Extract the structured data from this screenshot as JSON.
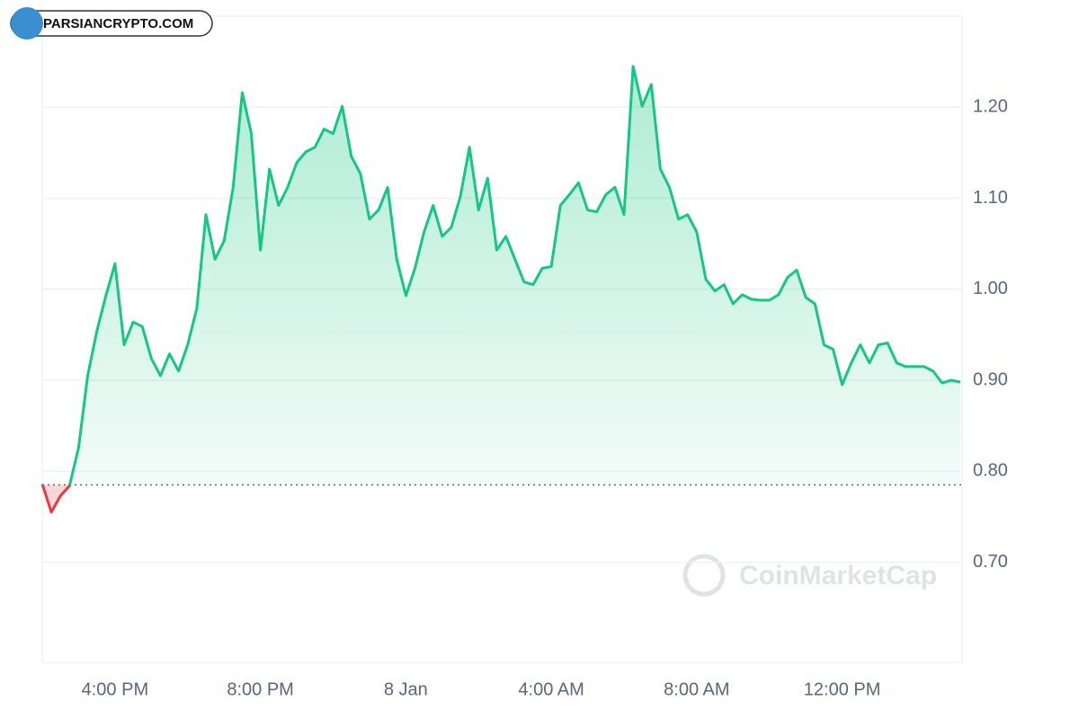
{
  "badge": "PARSIANCRYPTO.COM",
  "watermark": "CoinMarketCap",
  "chart_data": {
    "type": "line",
    "categories": [
      null,
      null,
      null,
      null,
      null,
      null,
      null,
      null,
      "4:00 PM",
      null,
      null,
      null,
      null,
      null,
      null,
      null,
      null,
      null,
      null,
      null,
      null,
      null,
      null,
      null,
      "8:00 PM",
      null,
      null,
      null,
      null,
      null,
      null,
      null,
      null,
      null,
      null,
      null,
      null,
      null,
      null,
      null,
      "8 Jan",
      null,
      null,
      null,
      null,
      null,
      null,
      null,
      null,
      null,
      null,
      null,
      null,
      null,
      null,
      null,
      "4:00 AM",
      null,
      null,
      null,
      null,
      null,
      null,
      null,
      null,
      null,
      null,
      null,
      null,
      null,
      null,
      null,
      "8:00 AM",
      null,
      null,
      null,
      null,
      null,
      null,
      null,
      null,
      null,
      null,
      null,
      null,
      null,
      null,
      null,
      "12:00 PM",
      null,
      null,
      null,
      null,
      null,
      null,
      null,
      null,
      null,
      null,
      null,
      null,
      null
    ],
    "series": [
      {
        "color": "#16c784",
        "below_color": "#ea3943",
        "values": [
          0.786,
          0.755,
          0.773,
          0.784,
          0.826,
          0.905,
          0.954,
          0.993,
          1.028,
          0.939,
          0.964,
          0.959,
          0.924,
          0.905,
          0.929,
          0.91,
          0.939,
          0.979,
          1.082,
          1.033,
          1.053,
          1.112,
          1.216,
          1.171,
          1.043,
          1.132,
          1.092,
          1.112,
          1.139,
          1.151,
          1.156,
          1.176,
          1.171,
          1.201,
          1.146,
          1.127,
          1.077,
          1.087,
          1.112,
          1.033,
          0.993,
          1.023,
          1.063,
          1.092,
          1.058,
          1.068,
          1.102,
          1.156,
          1.087,
          1.122,
          1.043,
          1.058,
          1.033,
          1.008,
          1.005,
          1.023,
          1.025,
          1.092,
          1.104,
          1.117,
          1.087,
          1.085,
          1.104,
          1.112,
          1.082,
          1.245,
          1.201,
          1.225,
          1.132,
          1.112,
          1.077,
          1.082,
          1.063,
          1.011,
          0.998,
          1.005,
          0.984,
          0.994,
          0.989,
          0.988,
          0.988,
          0.994,
          1.013,
          1.021,
          0.991,
          0.984,
          0.939,
          0.934,
          0.895,
          0.919,
          0.939,
          0.919,
          0.939,
          0.941,
          0.919,
          0.915,
          0.915,
          0.915,
          0.91,
          0.897,
          0.9,
          0.898
        ]
      }
    ],
    "baseline": 0.785,
    "ylim": [
      0.59,
      1.3
    ],
    "yticks": [
      {
        "value": 0.7,
        "label": "0.70"
      },
      {
        "value": 0.8,
        "label": "0.80"
      },
      {
        "value": 0.9,
        "label": "0.90"
      },
      {
        "value": 1.0,
        "label": "1.00"
      },
      {
        "value": 1.1,
        "label": "1.10"
      },
      {
        "value": 1.2,
        "label": "1.20"
      }
    ],
    "grid": true
  }
}
